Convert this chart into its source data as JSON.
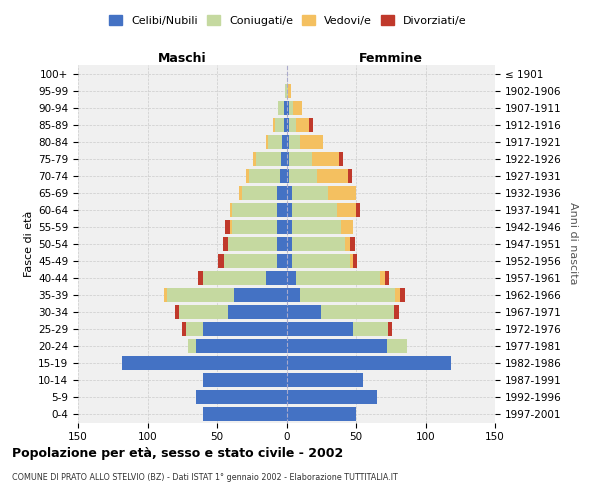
{
  "age_groups": [
    "100+",
    "95-99",
    "90-94",
    "85-89",
    "80-84",
    "75-79",
    "70-74",
    "65-69",
    "60-64",
    "55-59",
    "50-54",
    "45-49",
    "40-44",
    "35-39",
    "30-34",
    "25-29",
    "20-24",
    "15-19",
    "10-14",
    "5-9",
    "0-4"
  ],
  "birth_years": [
    "≤ 1901",
    "1902-1906",
    "1907-1911",
    "1912-1916",
    "1917-1921",
    "1922-1926",
    "1927-1931",
    "1932-1936",
    "1937-1941",
    "1942-1946",
    "1947-1951",
    "1952-1956",
    "1957-1961",
    "1962-1966",
    "1967-1971",
    "1972-1976",
    "1977-1981",
    "1982-1986",
    "1987-1991",
    "1992-1996",
    "1997-2001"
  ],
  "male_celibi": [
    0,
    0,
    2,
    2,
    3,
    4,
    5,
    7,
    7,
    7,
    7,
    7,
    15,
    38,
    42,
    60,
    65,
    118,
    60,
    65,
    60
  ],
  "male_coniugati": [
    0,
    1,
    4,
    6,
    10,
    18,
    22,
    25,
    32,
    32,
    35,
    38,
    45,
    48,
    35,
    12,
    6,
    0,
    0,
    0,
    0
  ],
  "male_vedovi": [
    0,
    0,
    0,
    2,
    2,
    2,
    2,
    2,
    2,
    2,
    0,
    0,
    0,
    2,
    0,
    0,
    0,
    0,
    0,
    0,
    0
  ],
  "male_divorziati": [
    0,
    0,
    0,
    0,
    0,
    0,
    0,
    0,
    0,
    3,
    4,
    4,
    4,
    0,
    3,
    3,
    0,
    0,
    0,
    0,
    0
  ],
  "female_nubili": [
    0,
    0,
    2,
    2,
    2,
    2,
    2,
    4,
    4,
    4,
    4,
    4,
    7,
    10,
    25,
    48,
    72,
    118,
    55,
    65,
    50
  ],
  "female_coniugate": [
    0,
    1,
    3,
    5,
    8,
    16,
    20,
    26,
    32,
    35,
    38,
    42,
    60,
    68,
    52,
    25,
    15,
    0,
    0,
    0,
    0
  ],
  "female_vedove": [
    0,
    2,
    6,
    9,
    16,
    20,
    22,
    20,
    14,
    9,
    4,
    2,
    4,
    4,
    0,
    0,
    0,
    0,
    0,
    0,
    0
  ],
  "female_divorziate": [
    0,
    0,
    0,
    3,
    0,
    3,
    3,
    0,
    3,
    0,
    3,
    3,
    3,
    3,
    4,
    3,
    0,
    0,
    0,
    0,
    0
  ],
  "colors": {
    "celibi": "#4472C4",
    "coniugati": "#C5D9A0",
    "vedovi": "#F4C060",
    "divorziati": "#C0392B"
  },
  "xlim": 150,
  "title": "Popolazione per età, sesso e stato civile - 2002",
  "subtitle": "COMUNE DI PRATO ALLO STELVIO (BZ) - Dati ISTAT 1° gennaio 2002 - Elaborazione TUTTITALIA.IT",
  "ylabel_left": "Fasce di età",
  "ylabel_right": "Anni di nascita",
  "legend_labels": [
    "Celibi/Nubili",
    "Coniugati/e",
    "Vedovi/e",
    "Divorziati/e"
  ],
  "bg_color": "#ffffff",
  "plot_bg": "#f0f0f0",
  "grid_color": "#cccccc"
}
